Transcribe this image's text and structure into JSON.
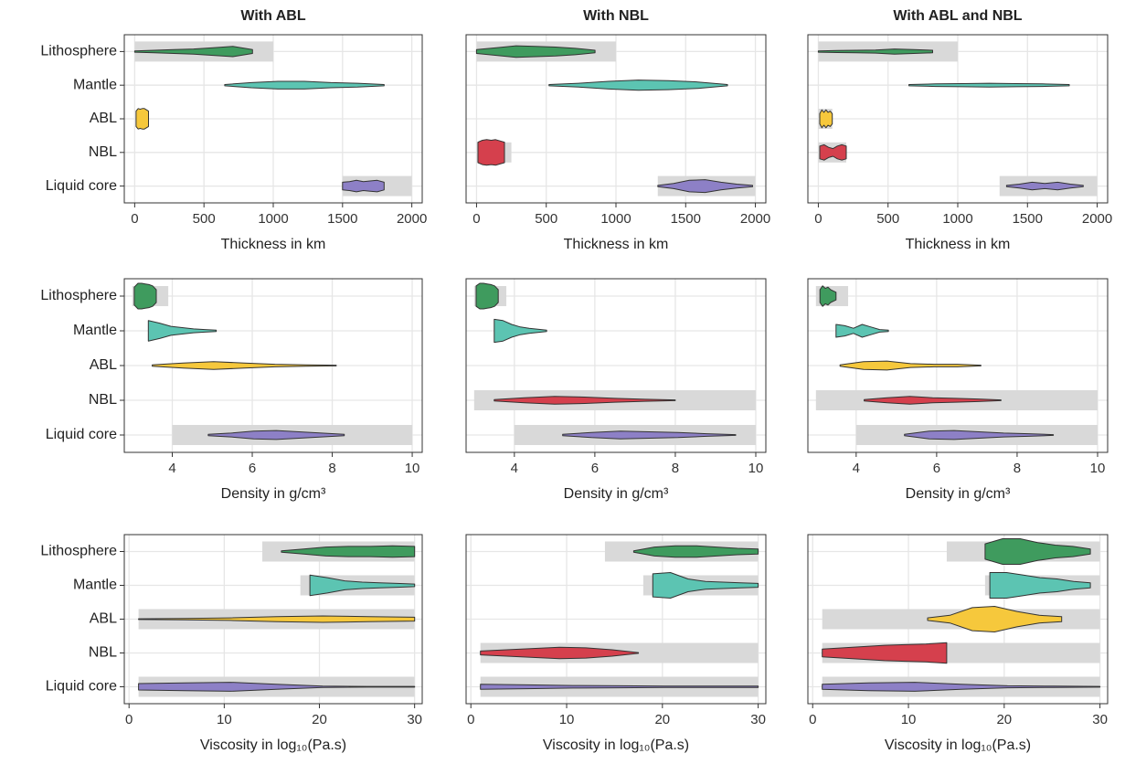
{
  "chart_data": [
    {
      "type": "violin",
      "title": "With ABL",
      "xlabel": "Thickness in km",
      "categories": [
        "Lithosphere",
        "Mantle",
        "ABL",
        "NBL",
        "Liquid core"
      ],
      "colors": [
        "#3f9b5e",
        "#5cc4b2",
        "#f6c83c",
        "#d5404d",
        "#8d80c6"
      ],
      "prior_color": "#d9d9d9",
      "xlim": [
        -75,
        2075
      ],
      "xticks": [
        0,
        500,
        1000,
        1500,
        2000
      ],
      "grid": true,
      "rows": [
        {
          "prior": [
            0,
            1000
          ],
          "violin": {
            "min": 0,
            "max": 850,
            "density": [
              0.05,
              0.1,
              0.15,
              0.2,
              0.3,
              0.4,
              0.15
            ]
          }
        },
        {
          "violin": {
            "min": 650,
            "max": 1800,
            "density": [
              0.05,
              0.2,
              0.3,
              0.3,
              0.2,
              0.15,
              0.05
            ]
          }
        },
        {
          "violin": {
            "min": 10,
            "max": 100,
            "density": [
              0.6,
              0.8,
              0.75,
              0.8,
              0.8,
              0.7,
              0.6
            ]
          }
        },
        null,
        {
          "prior": [
            1500,
            2000
          ],
          "violin": {
            "min": 1500,
            "max": 1800,
            "density": [
              0.3,
              0.35,
              0.45,
              0.35,
              0.4,
              0.45,
              0.3
            ]
          }
        }
      ]
    },
    {
      "type": "violin",
      "title": "With NBL",
      "xlabel": "Thickness in km",
      "colors": [
        "#3f9b5e",
        "#5cc4b2",
        "#f6c83c",
        "#d5404d",
        "#8d80c6"
      ],
      "prior_color": "#d9d9d9",
      "xlim": [
        -75,
        2075
      ],
      "xticks": [
        0,
        500,
        1000,
        1500,
        2000
      ],
      "grid": true,
      "rows": [
        {
          "prior": [
            0,
            1000
          ],
          "violin": {
            "min": 0,
            "max": 850,
            "density": [
              0.15,
              0.3,
              0.45,
              0.4,
              0.35,
              0.25,
              0.1
            ]
          }
        },
        {
          "violin": {
            "min": 520,
            "max": 1800,
            "density": [
              0.05,
              0.15,
              0.3,
              0.4,
              0.35,
              0.25,
              0.05
            ]
          }
        },
        null,
        {
          "prior": [
            0,
            250
          ],
          "violin": {
            "min": 10,
            "max": 200,
            "density": [
              0.8,
              0.95,
              1,
              0.95,
              1,
              0.9,
              0.8
            ]
          }
        },
        {
          "prior": [
            1300,
            2000
          ],
          "violin": {
            "min": 1300,
            "max": 1980,
            "density": [
              0.05,
              0.2,
              0.45,
              0.5,
              0.3,
              0.15,
              0.05
            ]
          }
        }
      ]
    },
    {
      "type": "violin",
      "title": "With ABL and NBL",
      "xlabel": "Thickness in km",
      "colors": [
        "#3f9b5e",
        "#5cc4b2",
        "#f6c83c",
        "#d5404d",
        "#8d80c6"
      ],
      "prior_color": "#d9d9d9",
      "xlim": [
        -75,
        2075
      ],
      "xticks": [
        0,
        500,
        1000,
        1500,
        2000
      ],
      "grid": true,
      "rows": [
        {
          "prior": [
            0,
            1000
          ],
          "violin": {
            "min": 0,
            "max": 820,
            "density": [
              0.05,
              0.08,
              0.1,
              0.12,
              0.2,
              0.15,
              0.1
            ]
          }
        },
        {
          "violin": {
            "min": 650,
            "max": 1800,
            "density": [
              0.05,
              0.1,
              0.12,
              0.15,
              0.12,
              0.1,
              0.05
            ]
          }
        },
        {
          "prior": [
            0,
            100
          ],
          "violin": {
            "min": 10,
            "max": 100,
            "density": [
              0.4,
              0.7,
              0.5,
              0.7,
              0.5,
              0.6,
              0.4
            ]
          }
        },
        {
          "prior": [
            0,
            200
          ],
          "violin": {
            "min": 10,
            "max": 200,
            "density": [
              0.5,
              0.6,
              0.4,
              0.3,
              0.5,
              0.6,
              0.5
            ]
          }
        },
        {
          "prior": [
            1300,
            2000
          ],
          "violin": {
            "min": 1350,
            "max": 1900,
            "density": [
              0.05,
              0.15,
              0.3,
              0.2,
              0.3,
              0.15,
              0.05
            ]
          }
        }
      ]
    },
    {
      "type": "violin",
      "xlabel": "Density in g/cm³",
      "categories": [
        "Lithosphere",
        "Mantle",
        "ABL",
        "NBL",
        "Liquid core"
      ],
      "colors": [
        "#3f9b5e",
        "#5cc4b2",
        "#f6c83c",
        "#d5404d",
        "#8d80c6"
      ],
      "prior_color": "#d9d9d9",
      "xlim": [
        2.8,
        10.25
      ],
      "xticks": [
        4,
        6,
        8,
        10
      ],
      "grid": true,
      "rows": [
        {
          "prior": [
            3,
            3.9
          ],
          "violin": {
            "min": 3.05,
            "max": 3.6,
            "density": [
              0.7,
              1,
              1,
              0.95,
              0.9,
              0.8,
              0.5
            ]
          }
        },
        {
          "violin": {
            "min": 3.4,
            "max": 5.1,
            "density": [
              0.8,
              0.6,
              0.35,
              0.25,
              0.15,
              0.1,
              0.05
            ]
          }
        },
        {
          "violin": {
            "min": 3.5,
            "max": 8.1,
            "density": [
              0.05,
              0.2,
              0.3,
              0.2,
              0.1,
              0.06,
              0.03
            ]
          }
        },
        null,
        {
          "prior": [
            4,
            10
          ],
          "violin": {
            "min": 4.9,
            "max": 8.3,
            "density": [
              0.05,
              0.15,
              0.3,
              0.35,
              0.25,
              0.15,
              0.05
            ]
          }
        }
      ]
    },
    {
      "type": "violin",
      "xlabel": "Density in g/cm³",
      "colors": [
        "#3f9b5e",
        "#5cc4b2",
        "#f6c83c",
        "#d5404d",
        "#8d80c6"
      ],
      "prior_color": "#d9d9d9",
      "xlim": [
        2.8,
        10.25
      ],
      "xticks": [
        4,
        6,
        8,
        10
      ],
      "grid": true,
      "rows": [
        {
          "prior": [
            3,
            3.8
          ],
          "violin": {
            "min": 3.05,
            "max": 3.6,
            "density": [
              0.8,
              1,
              1,
              0.95,
              0.9,
              0.8,
              0.5
            ]
          }
        },
        {
          "violin": {
            "min": 3.5,
            "max": 4.8,
            "density": [
              0.9,
              0.8,
              0.5,
              0.3,
              0.2,
              0.12,
              0.05
            ]
          }
        },
        null,
        {
          "prior": [
            3,
            10
          ],
          "violin": {
            "min": 3.5,
            "max": 8,
            "density": [
              0.05,
              0.2,
              0.3,
              0.25,
              0.15,
              0.08,
              0.03
            ]
          }
        },
        {
          "prior": [
            4,
            10
          ],
          "violin": {
            "min": 5.2,
            "max": 9.5,
            "density": [
              0.05,
              0.2,
              0.3,
              0.25,
              0.2,
              0.1,
              0.03
            ]
          }
        }
      ]
    },
    {
      "type": "violin",
      "xlabel": "Density in g/cm³",
      "colors": [
        "#3f9b5e",
        "#5cc4b2",
        "#f6c83c",
        "#d5404d",
        "#8d80c6"
      ],
      "prior_color": "#d9d9d9",
      "xlim": [
        2.8,
        10.25
      ],
      "xticks": [
        4,
        6,
        8,
        10
      ],
      "grid": true,
      "rows": [
        {
          "prior": [
            3,
            3.8
          ],
          "violin": {
            "min": 3.1,
            "max": 3.5,
            "density": [
              0.5,
              0.8,
              0.6,
              0.7,
              0.5,
              0.4,
              0.3
            ]
          }
        },
        {
          "violin": {
            "min": 3.5,
            "max": 4.8,
            "density": [
              0.5,
              0.4,
              0.2,
              0.5,
              0.3,
              0.1,
              0.05
            ]
          }
        },
        {
          "violin": {
            "min": 3.6,
            "max": 7.1,
            "density": [
              0.05,
              0.3,
              0.35,
              0.15,
              0.1,
              0.1,
              0.03
            ]
          }
        },
        {
          "prior": [
            3,
            10
          ],
          "violin": {
            "min": 4.2,
            "max": 7.6,
            "density": [
              0.05,
              0.2,
              0.3,
              0.2,
              0.15,
              0.1,
              0.03
            ]
          }
        },
        {
          "prior": [
            4,
            10
          ],
          "violin": {
            "min": 5.2,
            "max": 8.9,
            "density": [
              0.05,
              0.3,
              0.35,
              0.25,
              0.15,
              0.1,
              0.03
            ]
          }
        }
      ]
    },
    {
      "type": "violin",
      "xlabel": "Viscosity in log₁₀(Pa.s)",
      "categories": [
        "Lithosphere",
        "Mantle",
        "ABL",
        "NBL",
        "Liquid core"
      ],
      "colors": [
        "#3f9b5e",
        "#5cc4b2",
        "#f6c83c",
        "#d5404d",
        "#8d80c6"
      ],
      "prior_color": "#d9d9d9",
      "xlim": [
        -0.5,
        30.8
      ],
      "xticks": [
        0,
        10,
        20,
        30
      ],
      "grid": true,
      "rows": [
        {
          "prior": [
            14,
            30
          ],
          "violin": {
            "min": 16,
            "max": 30,
            "density": [
              0.05,
              0.2,
              0.35,
              0.4,
              0.4,
              0.45,
              0.4
            ]
          }
        },
        {
          "prior": [
            18,
            30
          ],
          "violin": {
            "min": 19,
            "max": 30,
            "density": [
              0.8,
              0.6,
              0.35,
              0.25,
              0.2,
              0.15,
              0.1
            ]
          }
        },
        {
          "prior": [
            1,
            30
          ],
          "violin": {
            "min": 1,
            "max": 30,
            "density": [
              0.03,
              0.05,
              0.1,
              0.2,
              0.25,
              0.2,
              0.15
            ]
          }
        },
        null,
        {
          "prior": [
            1,
            30
          ],
          "violin": {
            "min": 1,
            "max": 30,
            "density": [
              0.25,
              0.3,
              0.35,
              0.2,
              0.05,
              0.03,
              0.03
            ]
          }
        }
      ]
    },
    {
      "type": "violin",
      "xlabel": "Viscosity in log₁₀(Pa.s)",
      "colors": [
        "#3f9b5e",
        "#5cc4b2",
        "#f6c83c",
        "#d5404d",
        "#8d80c6"
      ],
      "prior_color": "#d9d9d9",
      "xlim": [
        -0.5,
        30.8
      ],
      "xticks": [
        0,
        10,
        20,
        30
      ],
      "grid": true,
      "rows": [
        {
          "prior": [
            14,
            30
          ],
          "violin": {
            "min": 17,
            "max": 30,
            "density": [
              0.05,
              0.35,
              0.45,
              0.45,
              0.35,
              0.25,
              0.2
            ]
          }
        },
        {
          "prior": [
            18,
            30
          ],
          "violin": {
            "min": 19,
            "max": 30,
            "density": [
              0.9,
              1,
              0.5,
              0.3,
              0.25,
              0.2,
              0.15
            ]
          }
        },
        null,
        {
          "prior": [
            1,
            30
          ],
          "violin": {
            "min": 1,
            "max": 17.5,
            "density": [
              0.15,
              0.25,
              0.35,
              0.45,
              0.4,
              0.25,
              0.03
            ]
          }
        },
        {
          "prior": [
            1,
            30
          ],
          "violin": {
            "min": 1,
            "max": 30,
            "density": [
              0.2,
              0.15,
              0.1,
              0.08,
              0.06,
              0.05,
              0.05
            ]
          }
        }
      ]
    },
    {
      "type": "violin",
      "xlabel": "Viscosity in log₁₀(Pa.s)",
      "colors": [
        "#3f9b5e",
        "#5cc4b2",
        "#f6c83c",
        "#d5404d",
        "#8d80c6"
      ],
      "prior_color": "#d9d9d9",
      "xlim": [
        -0.5,
        30.8
      ],
      "xticks": [
        0,
        10,
        20,
        30
      ],
      "grid": true,
      "rows": [
        {
          "prior": [
            14,
            30
          ],
          "violin": {
            "min": 18,
            "max": 29,
            "density": [
              0.6,
              1,
              1,
              0.7,
              0.5,
              0.4,
              0.2
            ]
          }
        },
        {
          "prior": [
            18,
            30
          ],
          "violin": {
            "min": 18.5,
            "max": 29,
            "density": [
              1,
              1,
              0.8,
              0.6,
              0.5,
              0.3,
              0.2
            ]
          }
        },
        {
          "prior": [
            1,
            30
          ],
          "violin": {
            "min": 12,
            "max": 26,
            "density": [
              0.1,
              0.3,
              0.9,
              1,
              0.6,
              0.3,
              0.2
            ]
          }
        },
        {
          "prior": [
            1,
            30
          ],
          "violin": {
            "min": 1,
            "max": 14,
            "density": [
              0.3,
              0.4,
              0.5,
              0.6,
              0.65,
              0.7,
              0.8
            ]
          }
        },
        {
          "prior": [
            1,
            30
          ],
          "violin": {
            "min": 1,
            "max": 30,
            "density": [
              0.2,
              0.3,
              0.35,
              0.2,
              0.08,
              0.05,
              0.03
            ]
          }
        }
      ]
    }
  ]
}
